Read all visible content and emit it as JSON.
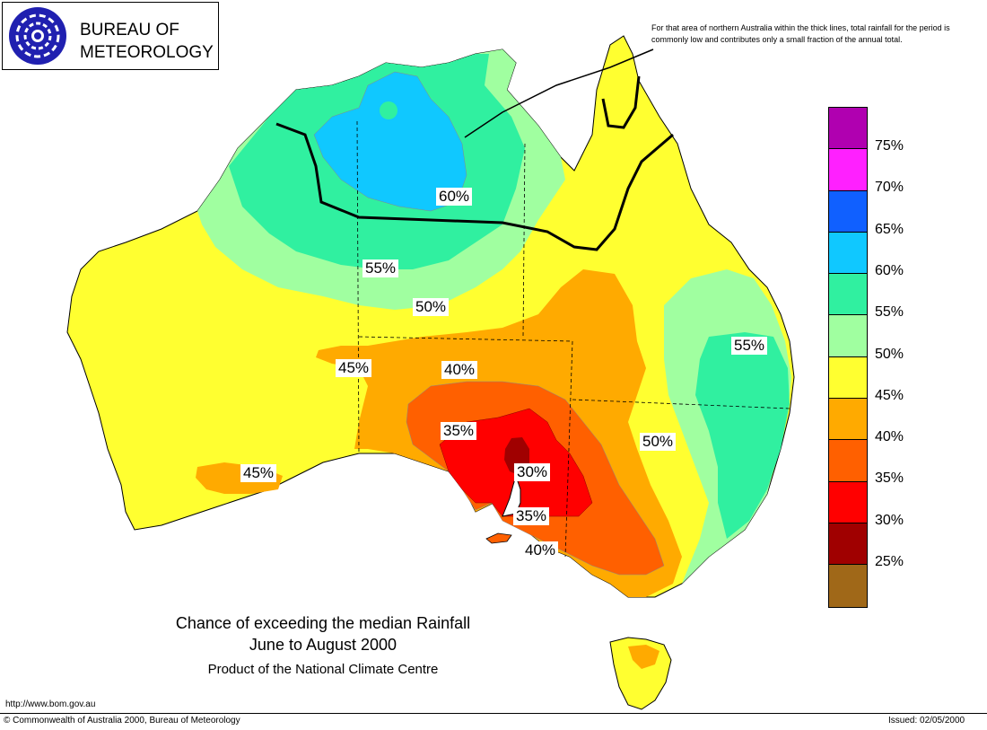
{
  "logo": {
    "line1": "BUREAU OF",
    "line2": "METEOROLOGY",
    "icon": "spiral-swirl-logo"
  },
  "note": {
    "text": "For that area of northern Australia within the thick lines, total rainfall for the period is commonly low and contributes only a small fraction of the annual total."
  },
  "map_labels": {
    "l60": "60%",
    "l55_north": "55%",
    "l50_mid": "50%",
    "l45_sa": "45%",
    "l40_sa": "40%",
    "l35": "35%",
    "l30": "30%",
    "l35_vic": "35%",
    "l40_vic": "40%",
    "l45_wa": "45%",
    "l50_east": "50%",
    "l55_east": "55%"
  },
  "title": {
    "line1": "Chance of exceeding the median Rainfall",
    "line2": "June to August 2000",
    "line3": "Product of the National Climate Centre"
  },
  "footer": {
    "url": "http://www.bom.gov.au",
    "copyright": "© Commonwealth of Australia 2000, Bureau of Meteorology",
    "issued": "Issued: 02/05/2000"
  },
  "legend": {
    "swatches": [
      {
        "color": "#b000b0"
      },
      {
        "color": "#ff20ff"
      },
      {
        "color": "#1060ff"
      },
      {
        "color": "#10c8ff"
      },
      {
        "color": "#30f0a0"
      },
      {
        "color": "#a0ffa0"
      },
      {
        "color": "#ffff30"
      },
      {
        "color": "#ffaa00"
      },
      {
        "color": "#ff6000"
      },
      {
        "color": "#ff0000"
      },
      {
        "color": "#a00000"
      },
      {
        "color": "#a06818"
      }
    ],
    "labels": [
      "75%",
      "70%",
      "65%",
      "60%",
      "55%",
      "50%",
      "45%",
      "40%",
      "35%",
      "30%",
      "25%"
    ]
  },
  "colors": {
    "c25": "#a06818",
    "c30": "#a00000",
    "c35": "#ff0000",
    "c40": "#ff6000",
    "c45": "#ffaa00",
    "c50": "#ffff30",
    "c55": "#a0ffa0",
    "c60": "#30f0a0",
    "c65": "#10c8ff",
    "c70": "#1060ff",
    "c75": "#ff20ff",
    "c80": "#b000b0"
  }
}
